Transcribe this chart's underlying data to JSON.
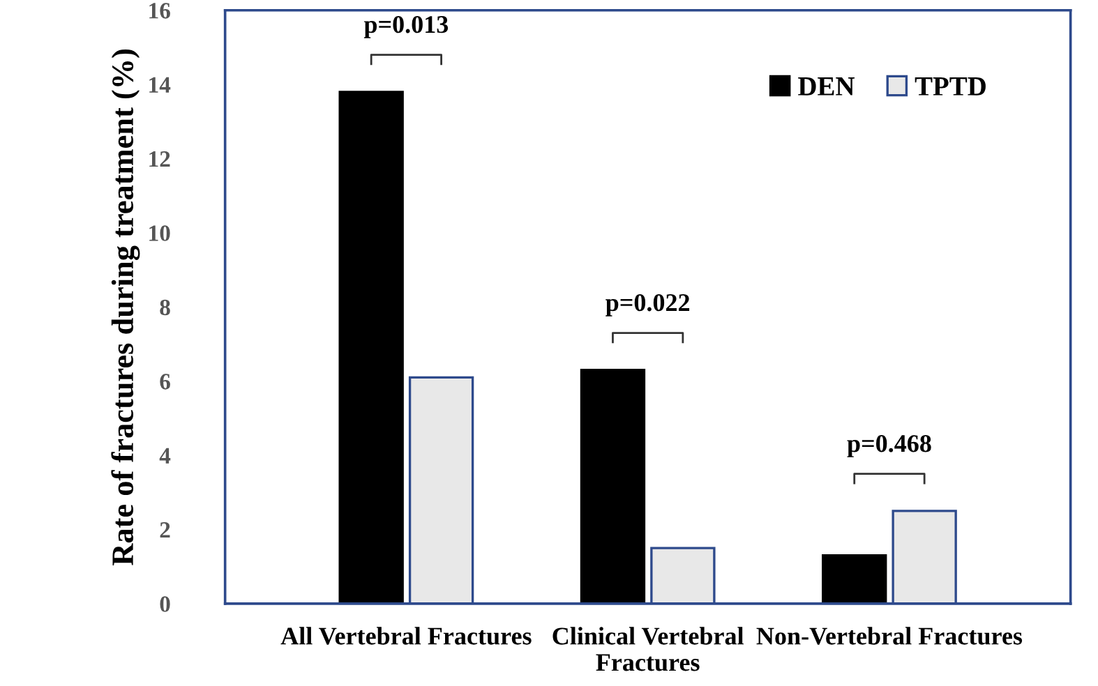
{
  "chart_data": {
    "type": "bar",
    "ylabel": "Rate of fractures during treatment (%)",
    "categories": [
      "All Vertebral Fractures",
      "Clinical Vertebral\nFractures",
      "Non-Vertebral Fractures"
    ],
    "series": [
      {
        "name": "DEN",
        "color": "#000000",
        "values": [
          13.8,
          6.3,
          1.3
        ]
      },
      {
        "name": "TPTD",
        "color": "#e8e8e8",
        "values": [
          6.1,
          1.5,
          2.5
        ]
      }
    ],
    "ylim": [
      0,
      16
    ],
    "yticks": [
      0,
      2,
      4,
      6,
      8,
      10,
      12,
      14,
      16
    ],
    "grid": false,
    "legend": "top right",
    "annotations": [
      "p=0.013",
      "p=0.022",
      "p=0.468"
    ]
  }
}
